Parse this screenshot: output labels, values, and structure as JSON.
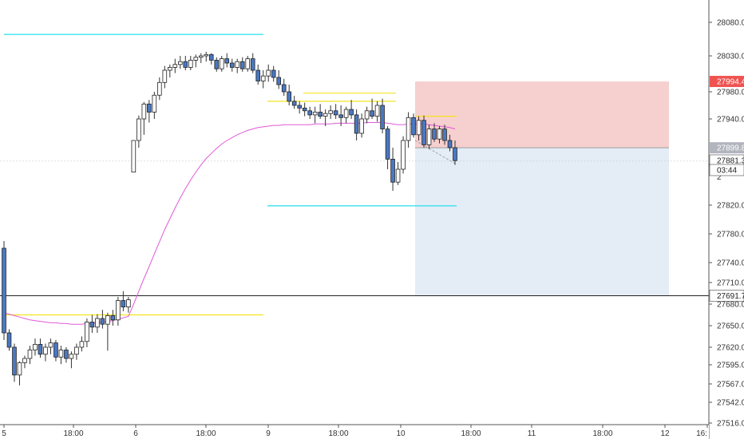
{
  "chart_data": {
    "type": "candlestick",
    "y_axis_ticks": [
      28080.0,
      28030.0,
      27980.0,
      27940.0,
      27820.0,
      27780.0,
      27740.0,
      27710.0,
      27680.0,
      27650.0,
      27620.0,
      27595.0,
      27567.0,
      27542.0,
      27516.0
    ],
    "y_axis_tick_labels": [
      "28080.0",
      "28030.0",
      "27980.0",
      "27940.0",
      "27820.0",
      "27780.0",
      "27740.0",
      "27710.0",
      "27680.0",
      "27650.0",
      "27620.0",
      "27595.0",
      "27567.0",
      "27542.0",
      "27516.0"
    ],
    "x_axis_labels": [
      "5",
      "18:00",
      "6",
      "18:00",
      "9",
      "18:00",
      "10",
      "18:00",
      "11",
      "18:00",
      "12",
      "16:"
    ],
    "price_tags": [
      {
        "name": "stop-tag",
        "label": "27994.4",
        "value": 27994.4,
        "color": "#ef5350"
      },
      {
        "name": "entry-tag",
        "label": "27899.8",
        "value": 27899.8,
        "color": "#b2b5be"
      },
      {
        "name": "last-price-tag",
        "label": "27881.3",
        "value": 27881.3,
        "color": "#ffffff"
      },
      {
        "name": "countdown-tag",
        "label": "03:44",
        "value": null,
        "color": "#ffffff"
      },
      {
        "name": "target-tag",
        "label": "27691.7",
        "value": 27691.7,
        "color": "#ffffff"
      }
    ],
    "partial_tick_label": "2",
    "candles": [
      [
        27760,
        27770,
        27630,
        27640
      ],
      [
        27640,
        27645,
        27615,
        27620
      ],
      [
        27620,
        27625,
        27570,
        27580
      ],
      [
        27580,
        27600,
        27565,
        27598
      ],
      [
        27598,
        27608,
        27590,
        27604
      ],
      [
        27604,
        27622,
        27596,
        27616
      ],
      [
        27616,
        27632,
        27608,
        27624
      ],
      [
        27624,
        27632,
        27605,
        27610
      ],
      [
        27610,
        27625,
        27600,
        27620
      ],
      [
        27620,
        27632,
        27610,
        27626
      ],
      [
        27626,
        27630,
        27600,
        27606
      ],
      [
        27606,
        27622,
        27596,
        27616
      ],
      [
        27616,
        27620,
        27598,
        27604
      ],
      [
        27604,
        27614,
        27590,
        27610
      ],
      [
        27610,
        27625,
        27602,
        27620
      ],
      [
        27620,
        27635,
        27614,
        27628
      ],
      [
        27628,
        27660,
        27620,
        27655
      ],
      [
        27655,
        27665,
        27640,
        27648
      ],
      [
        27648,
        27666,
        27640,
        27660
      ],
      [
        27660,
        27672,
        27646,
        27652
      ],
      [
        27652,
        27668,
        27615,
        27664
      ],
      [
        27664,
        27672,
        27650,
        27658
      ],
      [
        27658,
        27690,
        27650,
        27685
      ],
      [
        27685,
        27698,
        27670,
        27676
      ],
      [
        27676,
        27690,
        27668,
        27686
      ],
      [
        27866,
        27910,
        27866,
        27910
      ],
      [
        27910,
        27945,
        27900,
        27940
      ],
      [
        27940,
        27965,
        27918,
        27962
      ],
      [
        27962,
        27968,
        27935,
        27950
      ],
      [
        27950,
        27980,
        27940,
        27975
      ],
      [
        27975,
        28000,
        27968,
        27993
      ],
      [
        27993,
        28016,
        27985,
        28010
      ],
      [
        28010,
        28018,
        28000,
        28014
      ],
      [
        28014,
        28026,
        28006,
        28018
      ],
      [
        28018,
        28030,
        28012,
        28022
      ],
      [
        28022,
        28030,
        28010,
        28014
      ],
      [
        28014,
        28030,
        28010,
        28024
      ],
      [
        28024,
        28032,
        28014,
        28028
      ],
      [
        28028,
        28034,
        28020,
        28030
      ],
      [
        28030,
        28036,
        28022,
        28032
      ],
      [
        28032,
        28034,
        28018,
        28024
      ],
      [
        28024,
        28028,
        28008,
        28012
      ],
      [
        28012,
        28030,
        28008,
        28026
      ],
      [
        28026,
        28034,
        28014,
        28020
      ],
      [
        28020,
        28026,
        28008,
        28014
      ],
      [
        28014,
        28026,
        28006,
        28022
      ],
      [
        28022,
        28028,
        28008,
        28012
      ],
      [
        28012,
        28030,
        28008,
        28026
      ],
      [
        28026,
        28034,
        28006,
        28010
      ],
      [
        28010,
        28018,
        27990,
        27995
      ],
      [
        27995,
        28010,
        27985,
        28002
      ],
      [
        28002,
        28018,
        27994,
        28010
      ],
      [
        28010,
        28016,
        27994,
        28000
      ],
      [
        28000,
        28010,
        27984,
        27990
      ],
      [
        27990,
        27998,
        27974,
        27980
      ],
      [
        27980,
        27990,
        27960,
        27966
      ],
      [
        27966,
        27974,
        27955,
        27960
      ],
      [
        27960,
        27966,
        27948,
        27956
      ],
      [
        27956,
        27964,
        27944,
        27952
      ],
      [
        27952,
        27958,
        27940,
        27946
      ],
      [
        27946,
        27958,
        27934,
        27950
      ],
      [
        27950,
        27962,
        27940,
        27944
      ],
      [
        27944,
        27954,
        27930,
        27948
      ],
      [
        27948,
        27960,
        27940,
        27952
      ],
      [
        27952,
        27962,
        27940,
        27946
      ],
      [
        27946,
        27960,
        27930,
        27942
      ],
      [
        27942,
        27958,
        27934,
        27954
      ],
      [
        27954,
        27968,
        27940,
        27946
      ],
      [
        27946,
        27954,
        27910,
        27920
      ],
      [
        27920,
        27948,
        27914,
        27940
      ],
      [
        27940,
        27958,
        27934,
        27952
      ],
      [
        27952,
        27970,
        27940,
        27944
      ],
      [
        27944,
        27966,
        27936,
        27960
      ],
      [
        27960,
        27970,
        27920,
        27926
      ],
      [
        27926,
        27930,
        27870,
        27884
      ],
      [
        27884,
        27900,
        27840,
        27852
      ],
      [
        27852,
        27880,
        27848,
        27870
      ],
      [
        27870,
        27916,
        27864,
        27910
      ],
      [
        27910,
        27950,
        27900,
        27942
      ],
      [
        27942,
        27948,
        27914,
        27918
      ],
      [
        27918,
        27944,
        27910,
        27938
      ],
      [
        27938,
        27945,
        27900,
        27904
      ],
      [
        27904,
        27932,
        27898,
        27926
      ],
      [
        27926,
        27934,
        27908,
        27912
      ],
      [
        27912,
        27930,
        27906,
        27926
      ],
      [
        27926,
        27932,
        27904,
        27910
      ],
      [
        27910,
        27918,
        27895,
        27900
      ],
      [
        27900,
        27910,
        27876,
        27882
      ]
    ],
    "ema_values": [
      27668,
      27666,
      27664,
      27662,
      27660,
      27658,
      27657,
      27656,
      27655,
      27654,
      27654,
      27653,
      27653,
      27652,
      27652,
      27652,
      27653,
      27653,
      27654,
      27655,
      27656,
      27657,
      27659,
      27661,
      27663,
      27680,
      27698,
      27716,
      27734,
      27752,
      27769,
      27786,
      27801,
      27816,
      27830,
      27843,
      27855,
      27866,
      27876,
      27885,
      27892,
      27899,
      27905,
      27910,
      27914,
      27918,
      27921,
      27924,
      27926,
      27928,
      27929,
      27930,
      27931,
      27931,
      27932,
      27932,
      27932,
      27932,
      27932,
      27932,
      27933,
      27933,
      27933,
      27933,
      27934,
      27934,
      27934,
      27934,
      27934,
      27934,
      27935,
      27935,
      27935,
      27935,
      27934,
      27933,
      27932,
      27932,
      27933,
      27933,
      27933,
      27933,
      27932,
      27931,
      27930,
      27929,
      27928,
      27926
    ],
    "levels": {
      "cyan_upper": 28062,
      "cyan_lower": 27819,
      "yellow_upper": 27978,
      "yellow_mid": 27966,
      "yellow_small": 27944,
      "yellow_lower": 27665,
      "stop_price": 27994.4,
      "entry_price": 27899.8,
      "target_price": 27691.7
    }
  }
}
